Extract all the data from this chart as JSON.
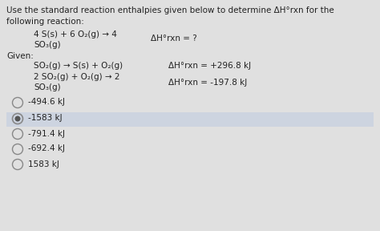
{
  "bg_color": "#e0e0e0",
  "highlight_color": "#cdd4e0",
  "options": [
    "-494.6 kJ",
    "-1583 kJ",
    "-791.4 kJ",
    "-692.4 kJ",
    "1583 kJ"
  ],
  "selected_index": 1,
  "font_size": 7.5,
  "circle_color": "#888888",
  "selected_fill": "#555555"
}
